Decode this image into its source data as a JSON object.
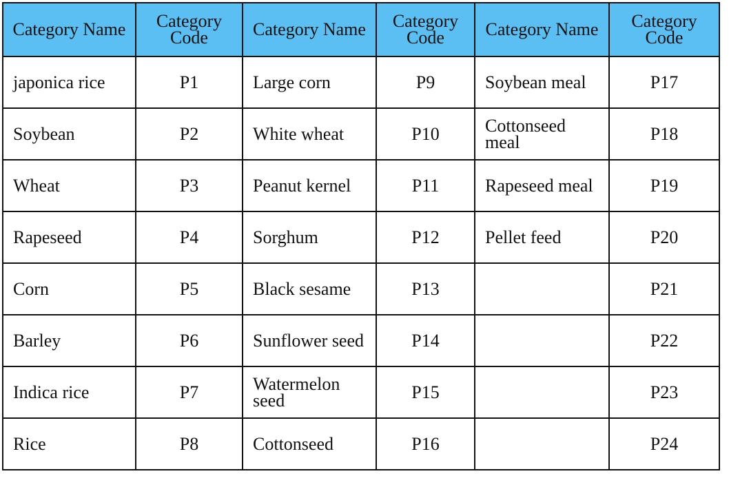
{
  "table": {
    "header": [
      "Category Name",
      "Category Code",
      "Category Name",
      "Category Code",
      "Category Name",
      "Category Code"
    ],
    "rows": [
      [
        "japonica rice",
        "P1",
        "Large corn",
        "P9",
        "Soybean meal",
        "P17"
      ],
      [
        "Soybean",
        "P2",
        "White wheat",
        "P10",
        "Cottonseed meal",
        "P18"
      ],
      [
        "Wheat",
        "P3",
        "Peanut kernel",
        "P11",
        "Rapeseed meal",
        "P19"
      ],
      [
        "Rapeseed",
        "P4",
        "Sorghum",
        "P12",
        "Pellet feed",
        "P20"
      ],
      [
        "Corn",
        "P5",
        "Black sesame",
        "P13",
        null,
        "P21"
      ],
      [
        "Barley",
        "P6",
        "Sunflower seed",
        "P14",
        null,
        "P22"
      ],
      [
        "Indica rice",
        "P7",
        "Watermelon seed",
        "P15",
        null,
        "P23"
      ],
      [
        "Rice",
        "P8",
        "Cottonseed",
        "P16",
        null,
        "P24"
      ]
    ]
  }
}
